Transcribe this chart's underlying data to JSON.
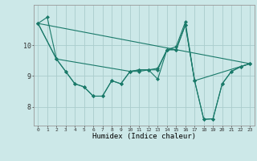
{
  "title": "",
  "xlabel": "Humidex (Indice chaleur)",
  "bg_color": "#cce8e8",
  "line_color": "#1a7a6a",
  "grid_color": "#aacccc",
  "xlim": [
    -0.5,
    23.5
  ],
  "ylim": [
    7.4,
    11.3
  ],
  "yticks": [
    8,
    9,
    10
  ],
  "xticks": [
    0,
    1,
    2,
    3,
    4,
    5,
    6,
    7,
    8,
    9,
    10,
    11,
    12,
    13,
    14,
    15,
    16,
    17,
    18,
    19,
    20,
    21,
    22,
    23
  ],
  "series": [
    {
      "x": [
        0,
        1,
        2,
        3,
        4,
        5,
        6,
        7,
        8,
        9,
        10,
        11,
        12,
        13,
        14,
        15,
        16,
        17,
        18,
        19,
        20,
        21,
        22,
        23
      ],
      "y": [
        10.7,
        10.9,
        9.55,
        9.15,
        8.75,
        8.65,
        8.35,
        8.35,
        8.85,
        8.75,
        9.15,
        9.15,
        9.2,
        8.9,
        9.85,
        9.95,
        10.75,
        8.85,
        7.6,
        7.62,
        8.75,
        9.15,
        9.3,
        9.4
      ]
    },
    {
      "x": [
        0,
        2,
        3,
        4,
        5,
        6,
        7,
        8,
        9,
        10,
        11,
        12,
        13,
        14,
        15,
        16,
        17,
        18,
        19,
        20,
        21,
        22,
        23
      ],
      "y": [
        10.7,
        9.55,
        9.15,
        8.75,
        8.65,
        8.35,
        8.35,
        8.85,
        8.75,
        9.15,
        9.2,
        9.2,
        9.2,
        9.85,
        9.85,
        10.65,
        8.85,
        7.6,
        7.62,
        8.75,
        9.15,
        9.3,
        9.4
      ]
    },
    {
      "x": [
        0,
        2,
        10,
        11,
        12,
        13,
        14,
        15,
        16,
        17,
        23
      ],
      "y": [
        10.7,
        9.55,
        9.15,
        9.2,
        9.2,
        9.25,
        9.85,
        9.85,
        10.65,
        8.85,
        9.4
      ]
    },
    {
      "x": [
        0,
        23
      ],
      "y": [
        10.7,
        9.4
      ],
      "no_marker": true
    }
  ]
}
